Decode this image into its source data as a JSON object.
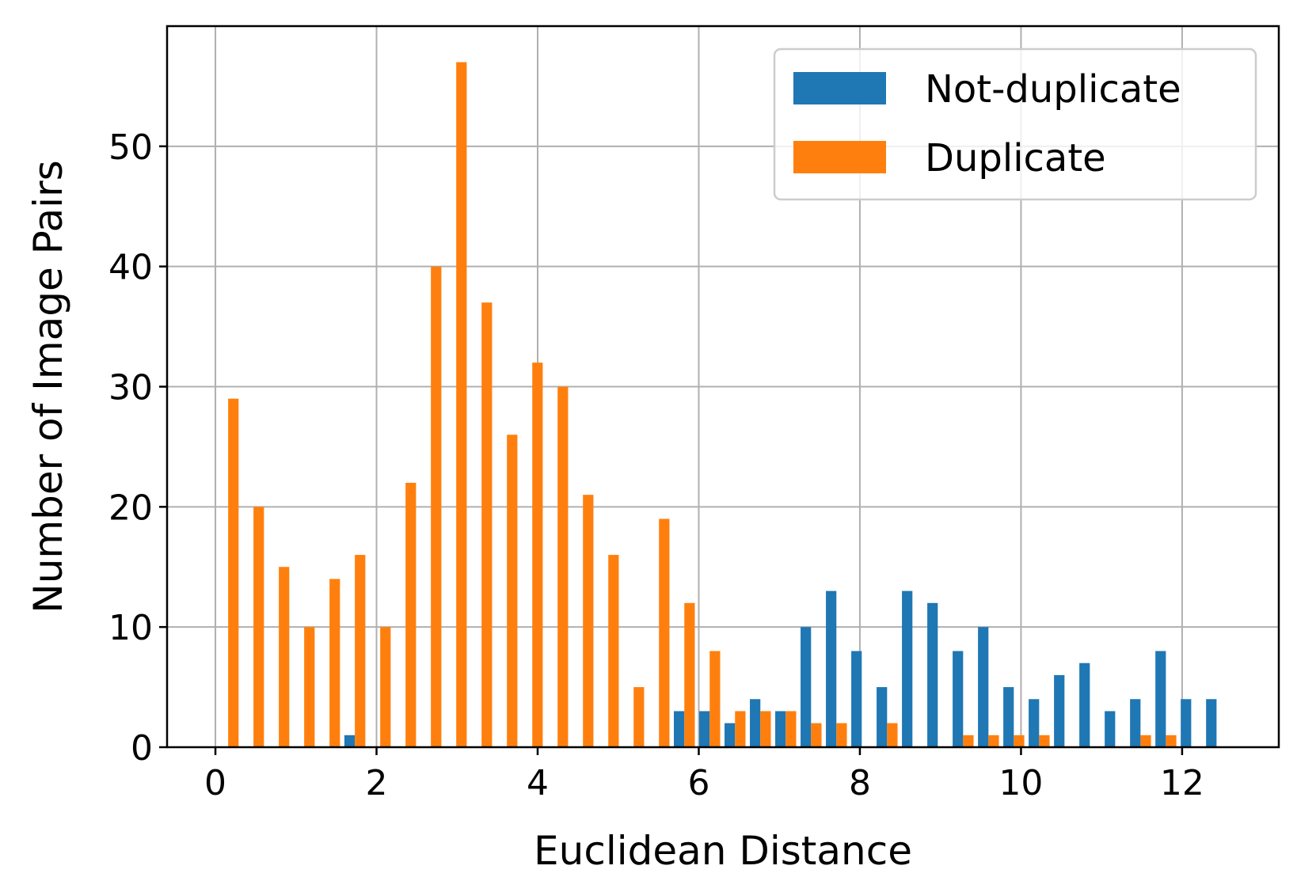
{
  "chart_data": {
    "type": "bar",
    "xlabel": "Euclidean Distance",
    "ylabel": "Number of Image Pairs",
    "xlim": [
      -0.6,
      13.2
    ],
    "ylim": [
      0,
      60
    ],
    "xticks": [
      0,
      2,
      4,
      6,
      8,
      10,
      12
    ],
    "yticks": [
      0,
      10,
      20,
      30,
      40,
      50
    ],
    "grid": true,
    "legend_position": "top-right",
    "bin_start": 0.0,
    "bin_width": 0.3146,
    "bar_width": 0.13,
    "series": [
      {
        "name": "Not-duplicate",
        "color": "#1f77b4",
        "values": [
          0,
          0,
          0,
          0,
          0,
          1,
          0,
          0,
          0,
          0,
          0,
          0,
          0,
          0,
          0,
          0,
          0,
          0,
          3,
          3,
          2,
          4,
          3,
          10,
          13,
          8,
          5,
          13,
          12,
          8,
          10,
          5,
          4,
          6,
          7,
          3,
          4,
          8,
          4,
          4
        ]
      },
      {
        "name": "Duplicate",
        "color": "#ff7f0e",
        "values": [
          29,
          20,
          15,
          10,
          14,
          16,
          10,
          22,
          40,
          57,
          37,
          26,
          32,
          30,
          21,
          16,
          5,
          19,
          12,
          8,
          3,
          3,
          3,
          2,
          2,
          0,
          2,
          0,
          0,
          1,
          1,
          1,
          1,
          0,
          0,
          0,
          1,
          1,
          0,
          0
        ]
      }
    ]
  }
}
